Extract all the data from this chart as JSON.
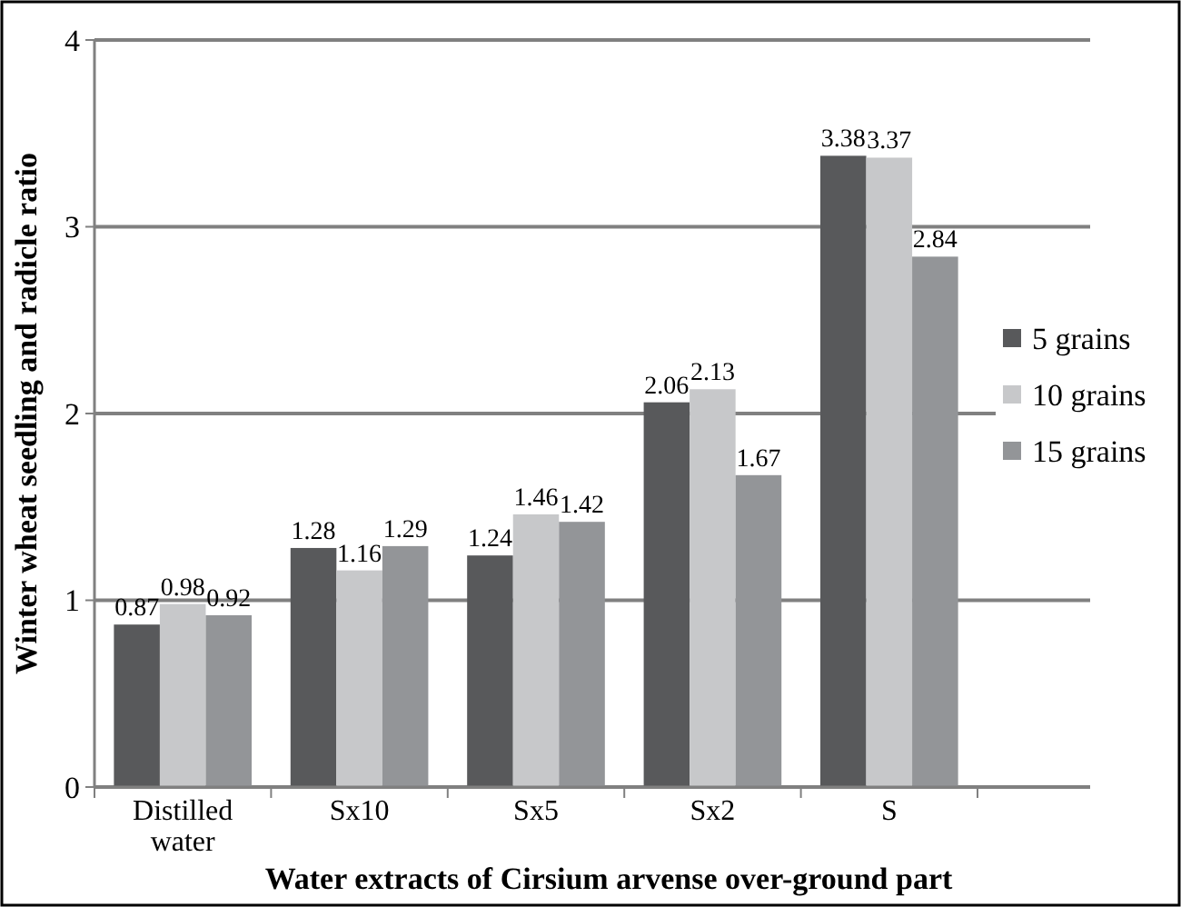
{
  "chart_data": {
    "type": "bar",
    "xlabel": "Water extracts of Cirsium arvense over-ground part",
    "ylabel": "Winter wheat seedling and radicle ratio",
    "categories": [
      "Distilled water",
      "Sx10",
      "Sx5",
      "Sx2",
      "S"
    ],
    "series": [
      {
        "name": "5 grains",
        "color": "#58595b",
        "values": [
          0.87,
          1.28,
          1.24,
          2.06,
          3.38
        ]
      },
      {
        "name": "10 grains",
        "color": "#c7c8ca",
        "values": [
          0.98,
          1.16,
          1.46,
          2.13,
          3.37
        ]
      },
      {
        "name": "15 grains",
        "color": "#939598",
        "values": [
          0.92,
          1.29,
          1.42,
          1.67,
          2.84
        ]
      }
    ],
    "ylim": [
      0,
      4
    ],
    "yticks": [
      0,
      1,
      2,
      3,
      4
    ],
    "grid": "y",
    "legend": "right",
    "data_labels": true
  }
}
